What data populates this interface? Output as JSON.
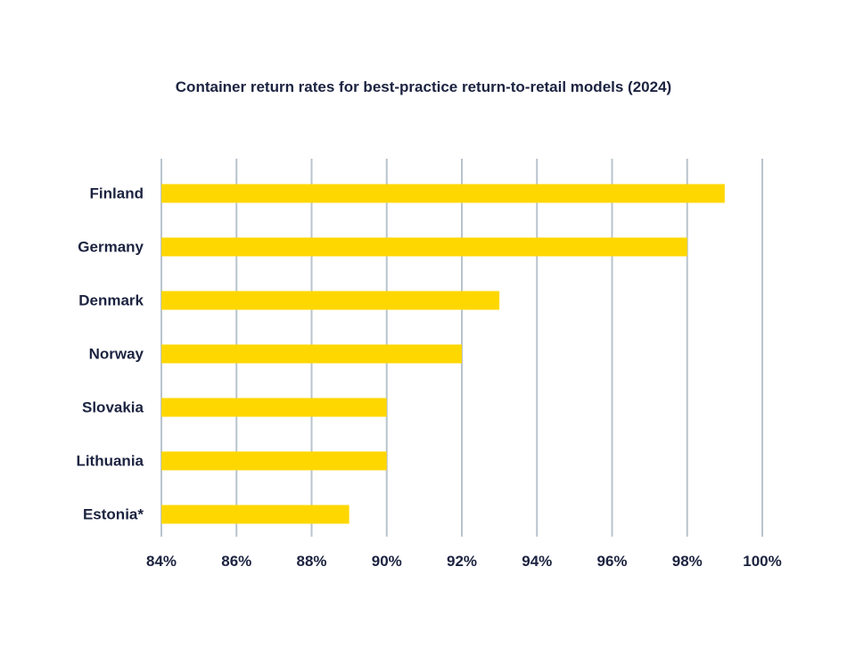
{
  "chart_data": {
    "type": "bar",
    "orientation": "horizontal",
    "title": "Container return rates for best-practice return-to-retail models (2024)",
    "xlabel": "",
    "ylabel": "",
    "categories": [
      "Finland",
      "Germany",
      "Denmark",
      "Norway",
      "Slovakia",
      "Lithuania",
      "Estonia*"
    ],
    "values": [
      99,
      98,
      93,
      92,
      90,
      90,
      89
    ],
    "xlim": [
      84,
      100
    ],
    "xticks": [
      84,
      86,
      88,
      90,
      92,
      94,
      96,
      98,
      100
    ],
    "xtick_labels": [
      "84%",
      "86%",
      "88%",
      "90%",
      "92%",
      "94%",
      "96%",
      "98%",
      "100%"
    ],
    "grid": "vertical",
    "legend": "none",
    "colors": {
      "bar": "#FFD700",
      "grid": "#B8C4CE",
      "text": "#1C2340"
    }
  }
}
